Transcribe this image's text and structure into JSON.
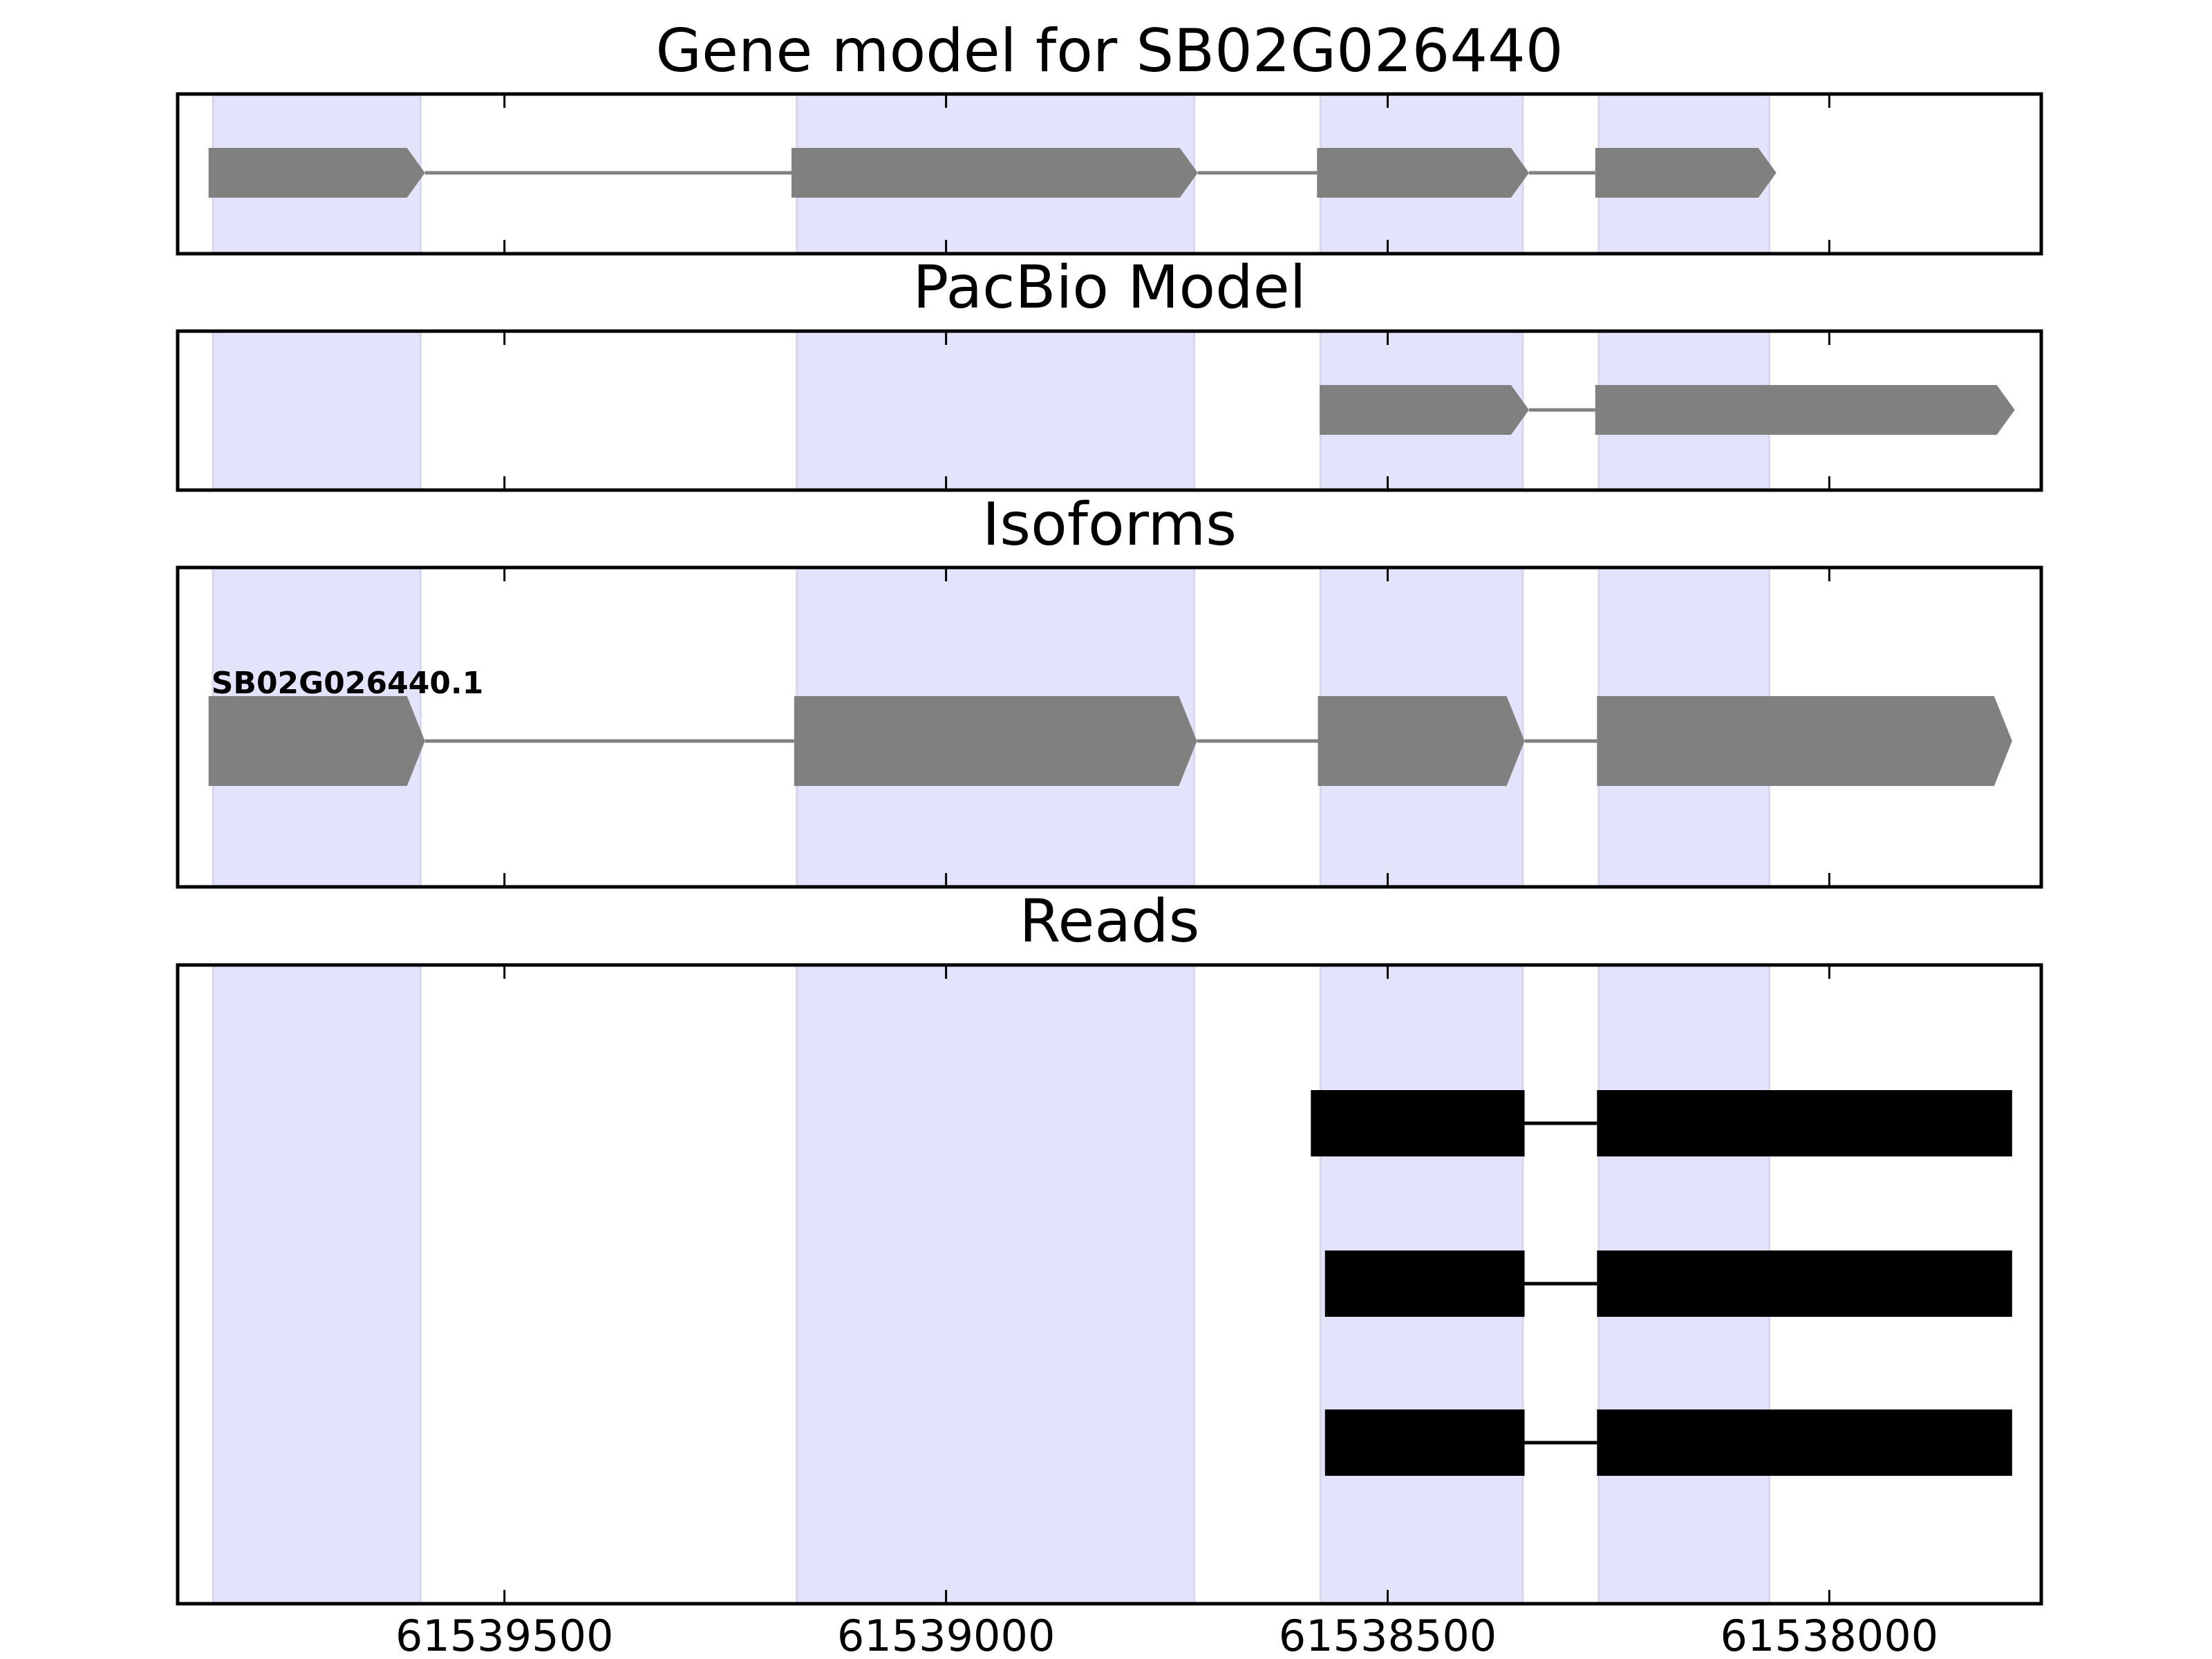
{
  "chart_data": {
    "type": "gene-model",
    "x_axis": {
      "xlim": [
        61539870,
        61537760
      ],
      "ticks": [
        61539500,
        61539000,
        61538500,
        61538000
      ],
      "tick_labels": [
        "61539500",
        "61539000",
        "61538500",
        "61538000"
      ]
    },
    "highlight_color": "#e3e3fc",
    "feature_color": "#808080",
    "read_color": "#000000",
    "highlight_regions": [
      [
        61539830,
        61539595
      ],
      [
        61539169,
        61538719
      ],
      [
        61538576,
        61538347
      ],
      [
        61538261,
        61538068
      ]
    ],
    "panels": [
      {
        "key": "gene_model",
        "title": "Gene model for SB02G026440",
        "kind": "model",
        "rows": [
          {
            "label": "",
            "exons": [
              [
                61539835,
                61539590
              ],
              [
                61539175,
                61538715
              ],
              [
                61538580,
                61538340
              ],
              [
                61538265,
                61538060
              ]
            ]
          }
        ]
      },
      {
        "key": "pacbio",
        "title": "PacBio Model",
        "kind": "model",
        "rows": [
          {
            "label": "",
            "exons": [
              [
                61538577,
                61538340
              ],
              [
                61538265,
                61537790
              ]
            ]
          }
        ]
      },
      {
        "key": "isoforms",
        "title": "Isoforms",
        "kind": "model",
        "rows": [
          {
            "label": "SB02G026440.1",
            "exons": [
              [
                61539835,
                61539590
              ],
              [
                61539172,
                61538716
              ],
              [
                61538579,
                61538345
              ],
              [
                61538263,
                61537793
              ]
            ]
          }
        ]
      },
      {
        "key": "reads",
        "title": "Reads",
        "kind": "reads",
        "rows": [
          {
            "label": "",
            "exons": [
              [
                61538587,
                61538345
              ],
              [
                61538263,
                61537793
              ]
            ]
          },
          {
            "label": "",
            "exons": [
              [
                61538571,
                61538345
              ],
              [
                61538263,
                61537793
              ]
            ]
          },
          {
            "label": "",
            "exons": [
              [
                61538571,
                61538345
              ],
              [
                61538263,
                61537793
              ]
            ]
          }
        ]
      }
    ]
  }
}
